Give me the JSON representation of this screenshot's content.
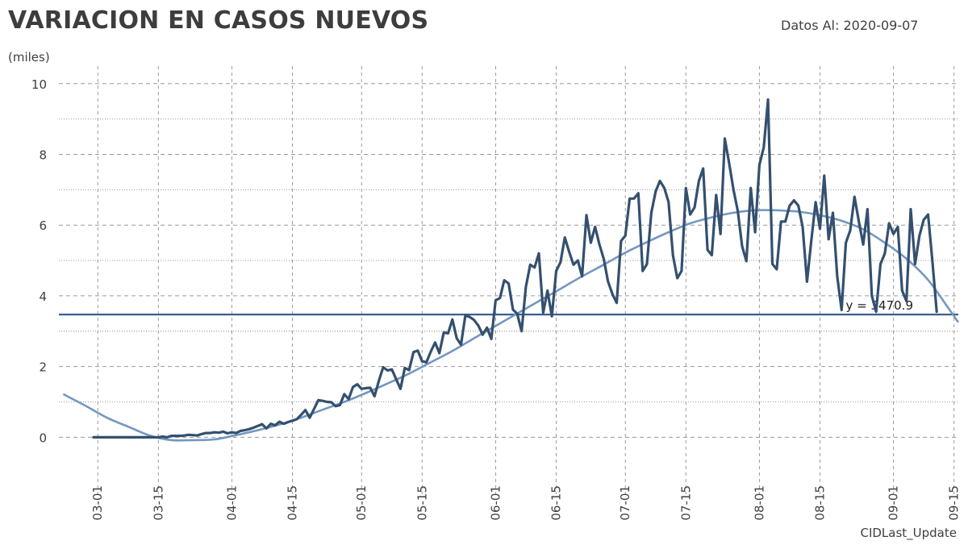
{
  "header": {
    "title": "VARIACION EN CASOS NUEVOS",
    "date_text": "Datos Al: 2020-09-07",
    "unit": "(miles)"
  },
  "footer": {
    "text": "CIDLast_Update"
  },
  "colors": {
    "series": "#34506f",
    "trend": "#7397c0",
    "reference": "#3a5f8f",
    "grid": "#9a9a9a"
  },
  "chart_data": {
    "type": "line",
    "title": "VARIACION EN CASOS NUEVOS",
    "ylabel": "(miles)",
    "xlabel": "",
    "ylim": [
      -1.2,
      10.2
    ],
    "xlim": [
      "2020-02-21",
      "2020-09-16"
    ],
    "grid": true,
    "y_ticks": [
      0,
      2,
      4,
      6,
      8,
      10
    ],
    "x_ticks": [
      {
        "date": "2020-03-01",
        "label": "03-01"
      },
      {
        "date": "2020-03-15",
        "label": "03-15"
      },
      {
        "date": "2020-04-01",
        "label": "04-01"
      },
      {
        "date": "2020-04-15",
        "label": "04-15"
      },
      {
        "date": "2020-05-01",
        "label": "05-01"
      },
      {
        "date": "2020-05-15",
        "label": "05-15"
      },
      {
        "date": "2020-06-01",
        "label": "06-01"
      },
      {
        "date": "2020-06-15",
        "label": "06-15"
      },
      {
        "date": "2020-07-01",
        "label": "07-01"
      },
      {
        "date": "2020-07-15",
        "label": "07-15"
      },
      {
        "date": "2020-08-01",
        "label": "08-01"
      },
      {
        "date": "2020-08-15",
        "label": "08-15"
      },
      {
        "date": "2020-09-01",
        "label": "09-01"
      },
      {
        "date": "2020-09-15",
        "label": "09-15"
      }
    ],
    "reference_line": {
      "value": 3.4709,
      "label": "y = 3470.9"
    },
    "series": [
      {
        "start_date": "2020-02-29",
        "values": [
          0,
          0,
          0,
          0,
          0,
          0,
          0,
          0,
          0,
          0,
          0,
          0,
          0,
          0,
          0,
          0,
          0.02,
          0,
          0.04,
          0.04,
          0.04,
          0.05,
          0.07,
          0.06,
          0.05,
          0.09,
          0.12,
          0.12,
          0.14,
          0.13,
          0.16,
          0.11,
          0.14,
          0.12,
          0.18,
          0.2,
          0.23,
          0.27,
          0.32,
          0.37,
          0.25,
          0.38,
          0.34,
          0.44,
          0.38,
          0.43,
          0.47,
          0.51,
          0.63,
          0.77,
          0.55,
          0.8,
          1.05,
          1.03,
          1.0,
          0.99,
          0.88,
          0.91,
          1.22,
          1.08,
          1.42,
          1.5,
          1.37,
          1.39,
          1.4,
          1.16,
          1.6,
          1.98,
          1.89,
          1.92,
          1.64,
          1.37,
          1.96,
          1.9,
          2.41,
          2.45,
          2.15,
          2.12,
          2.42,
          2.68,
          2.38,
          2.96,
          2.94,
          3.33,
          2.8,
          2.62,
          3.45,
          3.4,
          3.32,
          3.16,
          2.9,
          3.1,
          2.78,
          3.87,
          3.94,
          4.44,
          4.35,
          3.61,
          3.49,
          3.0,
          4.25,
          4.88,
          4.8,
          5.2,
          3.52,
          4.15,
          3.42,
          4.7,
          4.95,
          5.65,
          5.25,
          4.88,
          5.0,
          4.55,
          6.28,
          5.5,
          5.95,
          5.45,
          5.05,
          4.4,
          4.05,
          3.8,
          5.55,
          5.7,
          6.75,
          6.75,
          6.9,
          4.7,
          4.9,
          6.35,
          6.95,
          7.25,
          7.05,
          6.65,
          5.15,
          4.5,
          4.7,
          7.05,
          6.3,
          6.5,
          7.25,
          7.6,
          5.3,
          5.15,
          6.85,
          5.75,
          8.45,
          7.75,
          7.0,
          6.4,
          5.4,
          4.98,
          7.05,
          5.8,
          7.7,
          8.2,
          9.55,
          4.9,
          4.75,
          6.1,
          6.1,
          6.55,
          6.7,
          6.55,
          5.95,
          4.4,
          5.55,
          6.65,
          5.9,
          7.4,
          5.6,
          6.35,
          4.55,
          3.6,
          5.5,
          5.85,
          6.8,
          6.1,
          5.45,
          6.45,
          4.0,
          3.55,
          4.9,
          5.2,
          6.05,
          5.75,
          5.95,
          4.15,
          3.85,
          6.45,
          4.9,
          5.7,
          6.15,
          6.3,
          5.0,
          3.55
        ]
      },
      {
        "trend": true,
        "points": [
          [
            "2020-02-22",
            1.22
          ],
          [
            "2020-02-27",
            0.9
          ],
          [
            "2020-03-03",
            0.56
          ],
          [
            "2020-03-08",
            0.3
          ],
          [
            "2020-03-13",
            0.05
          ],
          [
            "2020-03-18",
            -0.08
          ],
          [
            "2020-03-23",
            -0.08
          ],
          [
            "2020-03-28",
            -0.06
          ],
          [
            "2020-04-02",
            0.06
          ],
          [
            "2020-04-07",
            0.2
          ],
          [
            "2020-04-12",
            0.36
          ],
          [
            "2020-04-17",
            0.55
          ],
          [
            "2020-04-22",
            0.78
          ],
          [
            "2020-04-27",
            1.0
          ],
          [
            "2020-05-02",
            1.25
          ],
          [
            "2020-05-07",
            1.52
          ],
          [
            "2020-05-12",
            1.8
          ],
          [
            "2020-05-17",
            2.12
          ],
          [
            "2020-05-22",
            2.44
          ],
          [
            "2020-05-27",
            2.8
          ],
          [
            "2020-06-01",
            3.15
          ],
          [
            "2020-06-06",
            3.5
          ],
          [
            "2020-06-11",
            3.85
          ],
          [
            "2020-06-16",
            4.2
          ],
          [
            "2020-06-21",
            4.55
          ],
          [
            "2020-06-26",
            4.88
          ],
          [
            "2020-07-01",
            5.22
          ],
          [
            "2020-07-06",
            5.52
          ],
          [
            "2020-07-11",
            5.8
          ],
          [
            "2020-07-16",
            6.05
          ],
          [
            "2020-07-21",
            6.22
          ],
          [
            "2020-07-26",
            6.35
          ],
          [
            "2020-07-31",
            6.42
          ],
          [
            "2020-08-05",
            6.42
          ],
          [
            "2020-08-10",
            6.38
          ],
          [
            "2020-08-15",
            6.28
          ],
          [
            "2020-08-20",
            6.12
          ],
          [
            "2020-08-25",
            5.88
          ],
          [
            "2020-08-30",
            5.5
          ],
          [
            "2020-09-04",
            5.05
          ],
          [
            "2020-09-09",
            4.45
          ],
          [
            "2020-09-14",
            3.6
          ],
          [
            "2020-09-16",
            3.25
          ]
        ]
      }
    ]
  }
}
